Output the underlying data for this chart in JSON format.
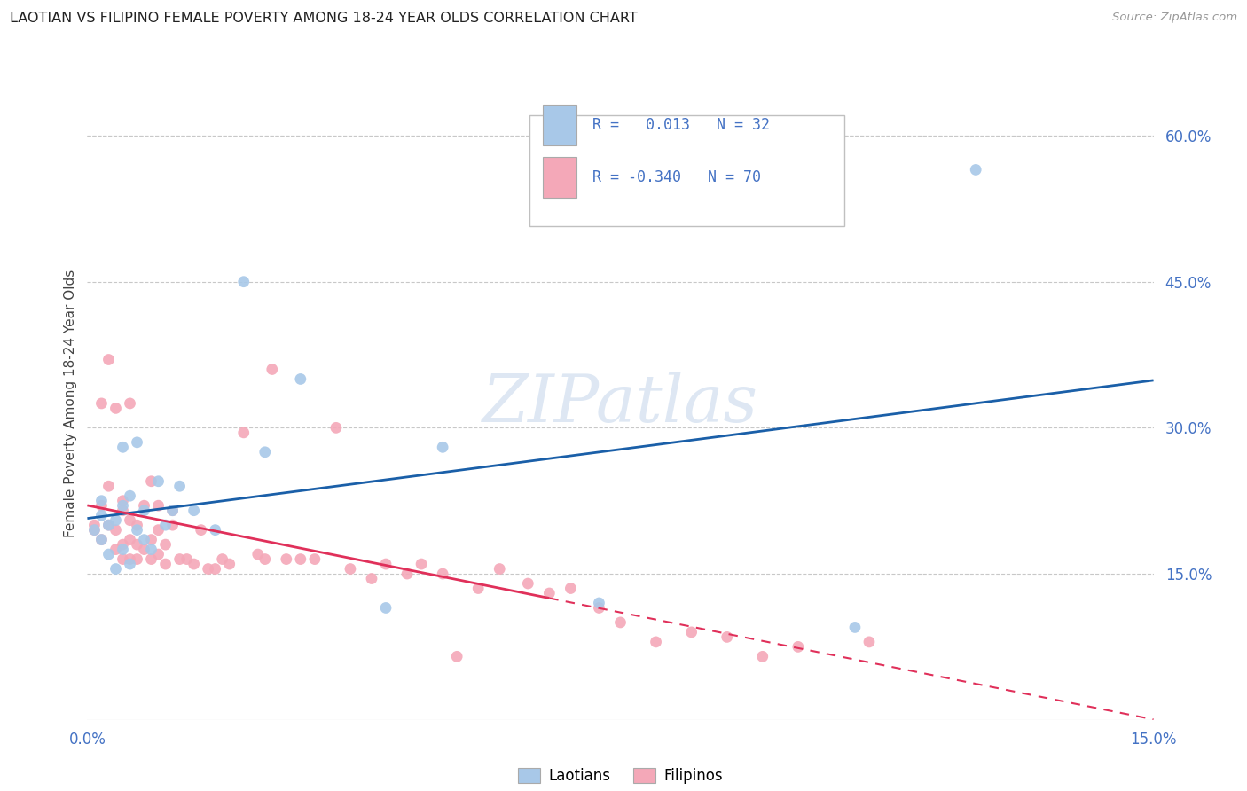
{
  "title": "LAOTIAN VS FILIPINO FEMALE POVERTY AMONG 18-24 YEAR OLDS CORRELATION CHART",
  "source": "Source: ZipAtlas.com",
  "ylabel": "Female Poverty Among 18-24 Year Olds",
  "xlim": [
    0.0,
    0.15
  ],
  "ylim": [
    0.0,
    0.65
  ],
  "background_color": "#ffffff",
  "grid_color": "#c8c8c8",
  "watermark_text": "ZIPatlas",
  "laotian_color": "#a8c8e8",
  "filipino_color": "#f4a8b8",
  "laotian_line_color": "#1a5fa8",
  "filipino_line_color": "#e0305a",
  "legend_text_color": "#4472c4",
  "tick_color": "#4472c4",
  "laotian_x": [
    0.001,
    0.002,
    0.002,
    0.002,
    0.003,
    0.003,
    0.004,
    0.004,
    0.005,
    0.005,
    0.005,
    0.006,
    0.006,
    0.007,
    0.007,
    0.008,
    0.008,
    0.009,
    0.01,
    0.011,
    0.012,
    0.013,
    0.015,
    0.018,
    0.022,
    0.025,
    0.03,
    0.042,
    0.05,
    0.072,
    0.108,
    0.125
  ],
  "laotian_y": [
    0.195,
    0.185,
    0.21,
    0.225,
    0.17,
    0.2,
    0.155,
    0.205,
    0.175,
    0.22,
    0.28,
    0.16,
    0.23,
    0.195,
    0.285,
    0.185,
    0.215,
    0.175,
    0.245,
    0.2,
    0.215,
    0.24,
    0.215,
    0.195,
    0.45,
    0.275,
    0.35,
    0.115,
    0.28,
    0.12,
    0.095,
    0.565
  ],
  "filipino_x": [
    0.001,
    0.001,
    0.002,
    0.002,
    0.002,
    0.003,
    0.003,
    0.003,
    0.004,
    0.004,
    0.004,
    0.005,
    0.005,
    0.005,
    0.005,
    0.006,
    0.006,
    0.006,
    0.006,
    0.007,
    0.007,
    0.007,
    0.008,
    0.008,
    0.009,
    0.009,
    0.009,
    0.01,
    0.01,
    0.01,
    0.011,
    0.011,
    0.012,
    0.012,
    0.013,
    0.014,
    0.015,
    0.016,
    0.017,
    0.018,
    0.019,
    0.02,
    0.022,
    0.024,
    0.025,
    0.026,
    0.028,
    0.03,
    0.032,
    0.035,
    0.037,
    0.04,
    0.042,
    0.045,
    0.047,
    0.05,
    0.052,
    0.055,
    0.058,
    0.062,
    0.065,
    0.068,
    0.072,
    0.075,
    0.08,
    0.085,
    0.09,
    0.095,
    0.1,
    0.11
  ],
  "filipino_y": [
    0.2,
    0.195,
    0.185,
    0.22,
    0.325,
    0.2,
    0.24,
    0.37,
    0.175,
    0.195,
    0.32,
    0.165,
    0.18,
    0.215,
    0.225,
    0.165,
    0.185,
    0.205,
    0.325,
    0.165,
    0.18,
    0.2,
    0.175,
    0.22,
    0.165,
    0.185,
    0.245,
    0.17,
    0.195,
    0.22,
    0.16,
    0.18,
    0.2,
    0.215,
    0.165,
    0.165,
    0.16,
    0.195,
    0.155,
    0.155,
    0.165,
    0.16,
    0.295,
    0.17,
    0.165,
    0.36,
    0.165,
    0.165,
    0.165,
    0.3,
    0.155,
    0.145,
    0.16,
    0.15,
    0.16,
    0.15,
    0.065,
    0.135,
    0.155,
    0.14,
    0.13,
    0.135,
    0.115,
    0.1,
    0.08,
    0.09,
    0.085,
    0.065,
    0.075,
    0.08
  ]
}
